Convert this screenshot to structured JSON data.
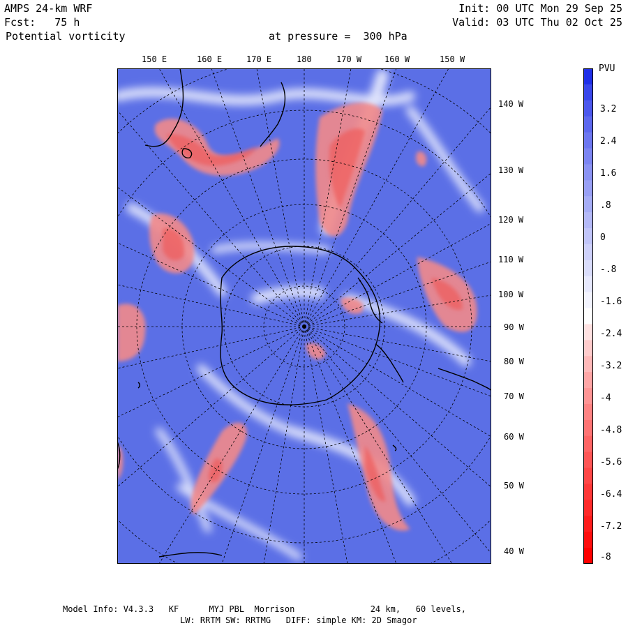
{
  "header": {
    "model": "AMPS 24-km WRF",
    "forecast": "Fcst:   75 h",
    "field": "Potential vorticity",
    "level": "at pressure =  300 hPa",
    "init": "Init: 00 UTC Mon 29 Sep 25",
    "valid": "Valid: 03 UTC Thu 02 Oct 25"
  },
  "map": {
    "top_lon_labels": [
      "150 E",
      "160 E",
      "170 E",
      "180",
      "170 W",
      "160 W",
      "150 W"
    ],
    "right_lon_labels": [
      "140 W",
      "130 W",
      "120 W",
      "110 W",
      "100 W",
      "90 W",
      "80 W",
      "70 W",
      "60 W",
      "50 W",
      "40 W"
    ]
  },
  "colorbar": {
    "title": "PVU",
    "labels": [
      "3.2",
      "2.4",
      "1.6",
      ".8",
      "0",
      "-.8",
      "-1.6",
      "-2.4",
      "-3.2",
      "-4",
      "-4.8",
      "-5.6",
      "-6.4",
      "-7.2",
      "-8"
    ],
    "max_color": "#1f2fe8",
    "mid_color": "#ffffff",
    "min_color": "#ff0000"
  },
  "footer": {
    "line1": "Model Info: V4.3.3   KF      MYJ PBL  Morrison               24 km,   60 levels,",
    "line2": "LW: RRTM SW: RRTMG   DIFF: simple KM: 2D Smagor"
  }
}
